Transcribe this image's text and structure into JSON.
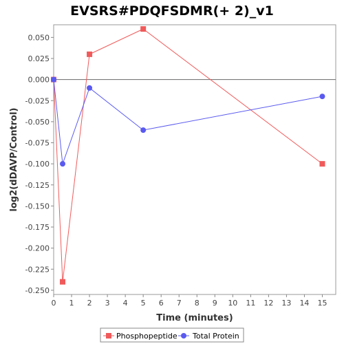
{
  "chart_data": {
    "type": "line",
    "title": "EVSRS#PDQFSDMR(+ 2)_v1",
    "xlabel": "Time (minutes)",
    "ylabel": "log2(dDAVP/Control)",
    "xlim": [
      0,
      15.75
    ],
    "ylim": [
      -0.255,
      0.065
    ],
    "x_ticks": [
      0,
      1,
      2,
      3,
      4,
      5,
      6,
      7,
      8,
      9,
      10,
      11,
      12,
      13,
      14,
      15
    ],
    "y_ticks": [
      0.05,
      0.025,
      0.0,
      -0.025,
      -0.05,
      -0.075,
      -0.1,
      -0.125,
      -0.15,
      -0.175,
      -0.2,
      -0.225,
      -0.25
    ],
    "y_tick_labels": [
      "0.050",
      "0.025",
      "0.000",
      "-0.025",
      "-0.050",
      "-0.075",
      "-0.100",
      "-0.125",
      "-0.150",
      "-0.175",
      "-0.200",
      "-0.225",
      "-0.250"
    ],
    "reference_line_y": 0.0,
    "grid": false,
    "legend_position": "bottom",
    "series": [
      {
        "name": "Phosphopeptide",
        "color": "#f05a5a",
        "marker": "square",
        "x": [
          0,
          0.5,
          2,
          5,
          15
        ],
        "y": [
          0.0,
          -0.24,
          0.03,
          0.06,
          -0.1
        ]
      },
      {
        "name": "Total Protein",
        "color": "#5a5af0",
        "marker": "circle",
        "x": [
          0,
          0.5,
          2,
          5,
          15
        ],
        "y": [
          0.0,
          -0.1,
          -0.01,
          -0.06,
          -0.02
        ]
      }
    ]
  }
}
